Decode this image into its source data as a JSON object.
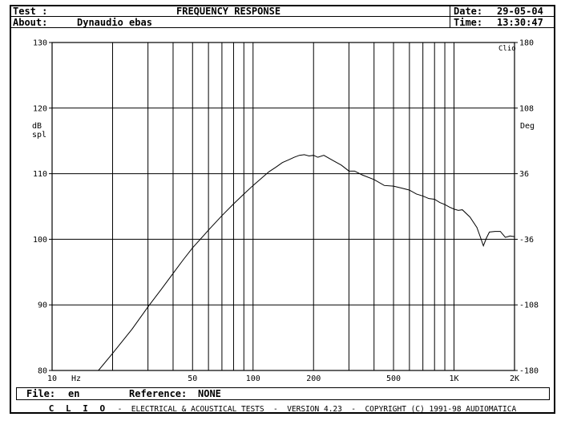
{
  "header": {
    "test_label": "Test :",
    "title": "FREQUENCY RESPONSE",
    "date_label": "Date:",
    "date_value": "29-05-04",
    "about_label": "About:",
    "about_value": "Dynaudio ebas",
    "time_label": "Time:",
    "time_value": "13:30:47"
  },
  "file_bar": {
    "file_label": "File:",
    "file_value": "en",
    "reference_label": "Reference:",
    "reference_value": "NONE"
  },
  "footer": {
    "brand": "C L I O",
    "text": "-  ELECTRICAL & ACOUSTICAL TESTS  -  VERSION 4.23  -  COPYRIGHT (C) 1991-98 AUDIOMATICA"
  },
  "chart_data": {
    "type": "line",
    "title": "FREQUENCY RESPONSE",
    "xlabel": "Hz",
    "ylabel": "dB spl",
    "y2label": "Deg",
    "corner_label": "Clio",
    "x_scale": "log",
    "xlim": [
      10,
      2000
    ],
    "ylim": [
      80,
      130
    ],
    "y2lim": [
      -180,
      180
    ],
    "grid": true,
    "x_ticks": [
      10,
      50,
      100,
      200,
      500,
      1000,
      2000
    ],
    "x_tick_labels": [
      "10",
      "50",
      "100",
      "200",
      "500",
      "1K",
      "2K"
    ],
    "x_gridlines": [
      20,
      30,
      40,
      50,
      60,
      70,
      80,
      90,
      100,
      200,
      300,
      400,
      500,
      600,
      700,
      800,
      900,
      1000
    ],
    "y_ticks": [
      80,
      90,
      100,
      110,
      120,
      130
    ],
    "y_tick_labels": [
      "80",
      "90",
      "100",
      "110",
      "120",
      "130"
    ],
    "y2_ticks": [
      -180,
      -108,
      -36,
      36,
      108,
      180
    ],
    "y2_tick_labels": [
      "-180",
      "-108",
      "-36",
      "36",
      "108",
      "180"
    ],
    "series": [
      {
        "x": [
          17,
          20,
          25,
          30,
          35,
          40,
          45,
          50,
          55,
          60,
          70,
          80,
          90,
          100,
          110,
          120,
          130,
          140,
          150,
          160,
          170,
          180,
          190,
          200,
          210,
          225,
          250,
          275,
          300,
          320,
          350,
          400,
          450,
          500,
          550,
          600,
          650,
          700,
          750,
          800,
          850,
          900,
          950,
          1000,
          1050,
          1100,
          1200,
          1300,
          1350,
          1400,
          1450,
          1500,
          1600,
          1700,
          1800,
          1900,
          2000
        ],
        "y": [
          80.0,
          82.6,
          86.3,
          89.7,
          92.4,
          94.8,
          96.9,
          98.7,
          100.1,
          101.4,
          103.6,
          105.4,
          106.9,
          108.2,
          109.3,
          110.3,
          111.0,
          111.7,
          112.1,
          112.5,
          112.8,
          112.9,
          112.7,
          112.8,
          112.5,
          112.8,
          112.0,
          111.3,
          110.4,
          110.4,
          109.8,
          109.1,
          108.2,
          108.1,
          107.8,
          107.5,
          106.9,
          106.6,
          106.2,
          106.1,
          105.6,
          105.3,
          104.9,
          104.6,
          104.4,
          104.5,
          103.4,
          101.8,
          100.4,
          99.0,
          100.2,
          101.1,
          101.2,
          101.2,
          100.3,
          100.5,
          100.4
        ]
      }
    ]
  }
}
